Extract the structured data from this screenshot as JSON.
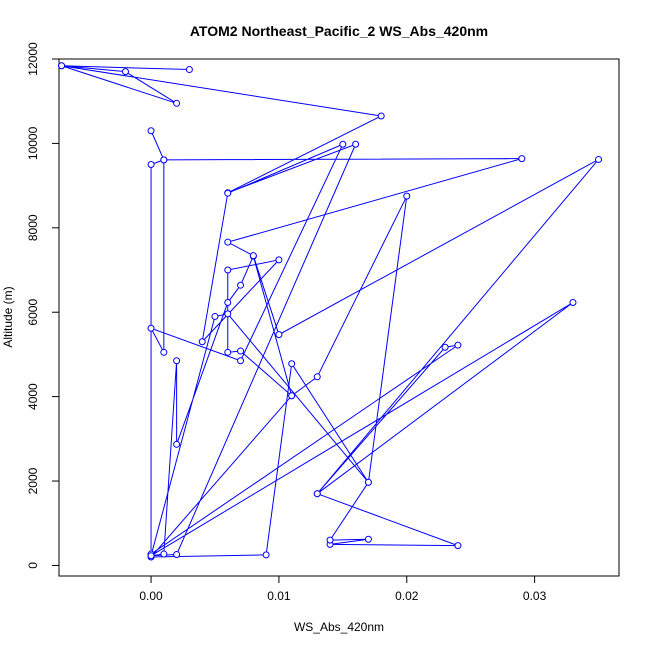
{
  "chart_data": {
    "type": "line",
    "title": "ATOM2 Northeast_Pacific_2 WS_Abs_420nm",
    "xlabel": "WS_Abs_420nm",
    "ylabel": "Altitude (m)",
    "xlim": [
      -0.0072,
      0.0366
    ],
    "ylim": [
      -250,
      12000
    ],
    "x_ticks": [
      0.0,
      0.01,
      0.02,
      0.03
    ],
    "x_tick_labels": [
      "0.00",
      "0.01",
      "0.02",
      "0.03"
    ],
    "y_ticks": [
      0,
      2000,
      4000,
      6000,
      8000,
      10000,
      12000
    ],
    "y_tick_labels": [
      "0",
      "2000",
      "4000",
      "6000",
      "8000",
      "10000",
      "12000"
    ],
    "grid": false,
    "color": "#0000ff",
    "marker": "open-circle",
    "series": [
      {
        "x": [
          0.003,
          -0.007,
          -0.002,
          0.002,
          -0.007,
          0.018,
          0.006,
          0.016,
          0.002,
          0.0,
          0.005,
          0.006,
          0.017,
          0.02,
          0.013,
          0.011,
          0.007,
          0.006,
          0.006,
          0.01,
          0.004,
          0.006,
          0.015,
          0.007,
          0.0,
          0.001,
          0.001,
          0.0,
          0.0,
          0.024,
          0.023,
          0.013,
          0.024,
          0.014,
          0.017,
          0.014,
          0.017,
          0.011,
          0.009,
          0.0,
          0.011,
          0.008,
          0.007,
          0.006,
          0.002,
          0.002,
          0.001,
          0.0,
          0.033,
          0.013,
          0.035,
          0.01,
          0.008,
          0.006,
          0.029,
          0.001,
          0.0
        ],
        "y": [
          11750,
          11840,
          11700,
          10950,
          11840,
          10650,
          8830,
          9980,
          260,
          230,
          5900,
          5960,
          1970,
          8750,
          4470,
          4020,
          5080,
          5050,
          7000,
          7240,
          5300,
          8820,
          9980,
          4850,
          5620,
          5050,
          9610,
          9500,
          270,
          5220,
          5170,
          1700,
          470,
          500,
          620,
          600,
          1970,
          4780,
          250,
          200,
          4020,
          7330,
          6640,
          6230,
          2870,
          4850,
          270,
          230,
          6230,
          1700,
          9620,
          5470,
          7340,
          7660,
          9640,
          9610,
          10300
        ]
      }
    ]
  }
}
